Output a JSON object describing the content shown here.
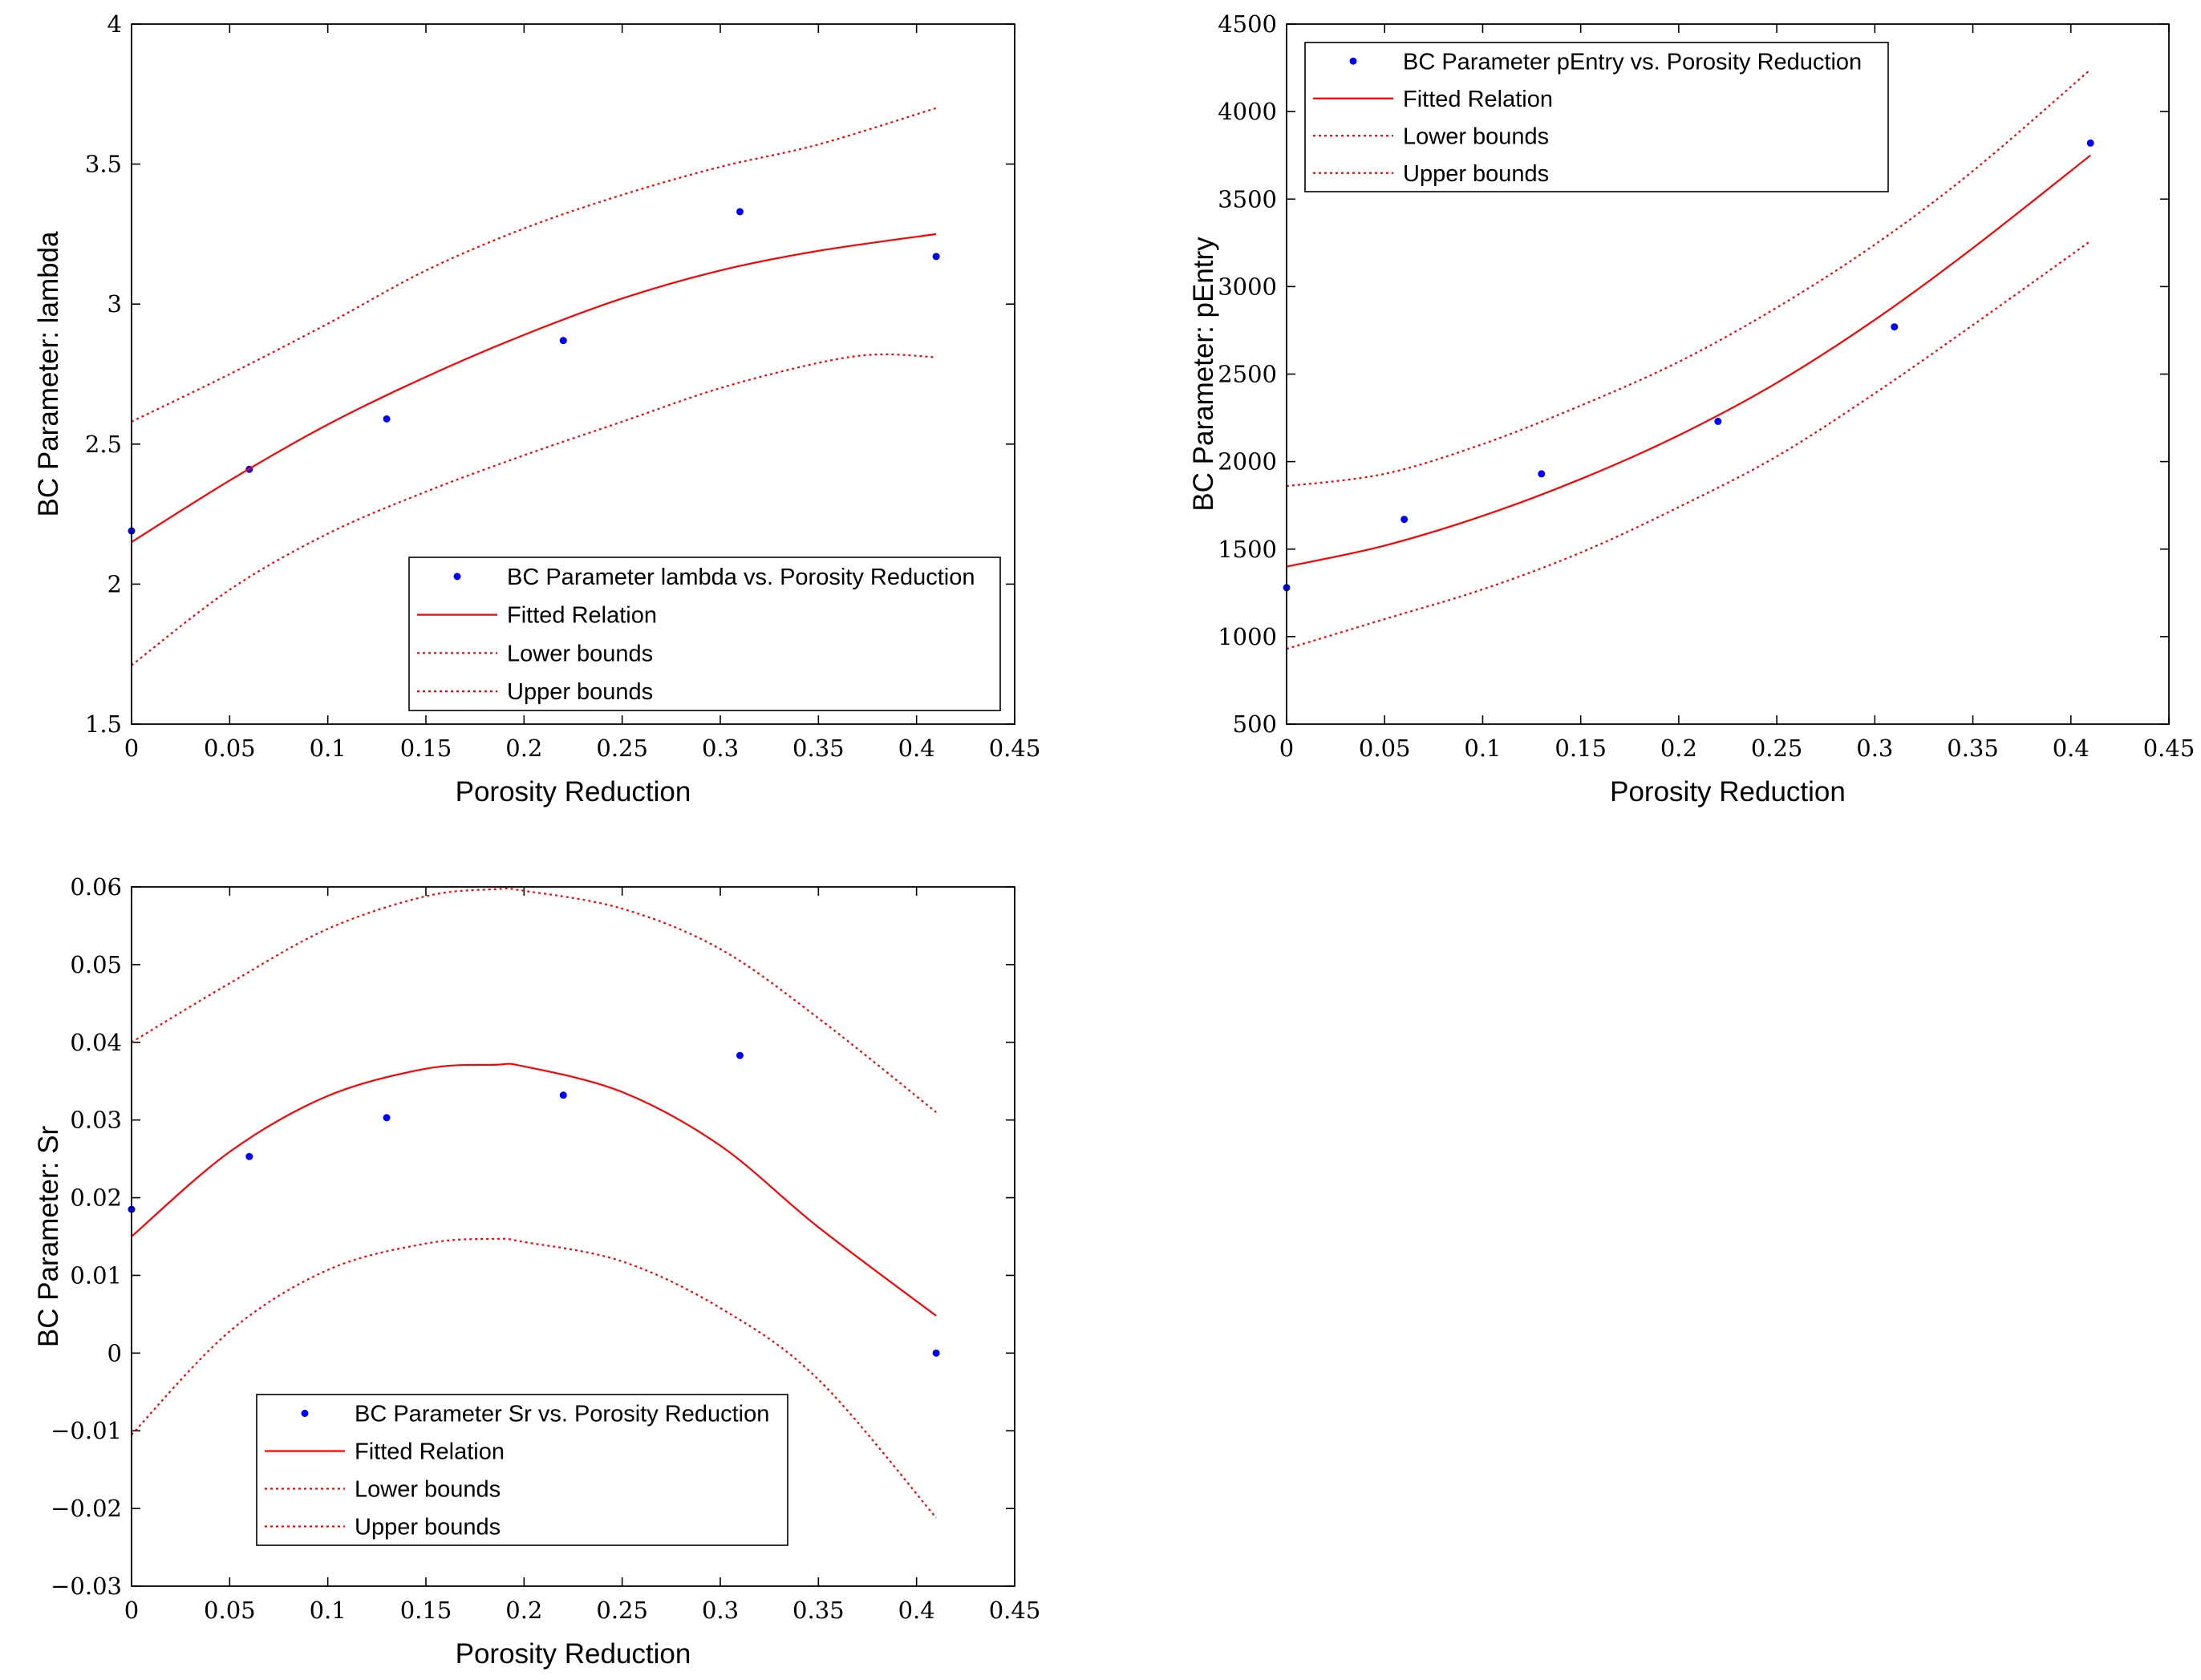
{
  "chart_data": [
    {
      "type": "scatter",
      "title": "",
      "xlabel": "Porosity Reduction",
      "ylabel": "BC Parameter: lambda",
      "xlim": [
        0,
        0.45
      ],
      "ylim": [
        1.5,
        4
      ],
      "xticks": [
        0,
        0.05,
        0.1,
        0.15,
        0.2,
        0.25,
        0.3,
        0.35,
        0.4,
        0.45
      ],
      "xtick_labels": [
        "0",
        "0.05",
        "0.1",
        "0.15",
        "0.2",
        "0.25",
        "0.3",
        "0.35",
        "0.4",
        "0.45"
      ],
      "yticks": [
        1.5,
        2,
        2.5,
        3,
        3.5,
        4
      ],
      "ytick_labels": [
        "1.5",
        "2",
        "2.5",
        "3",
        "3.5",
        "4"
      ],
      "legend_position": "bottom-right",
      "colors": {
        "points": "#0000ff",
        "fit": "#ff0000",
        "bounds": "#ff0000"
      },
      "series": [
        {
          "name": "BC Parameter lambda vs. Porosity Reduction",
          "style": "points",
          "x": [
            0,
            0.06,
            0.13,
            0.22,
            0.31,
            0.41
          ],
          "y": [
            2.19,
            2.41,
            2.59,
            2.87,
            3.33,
            3.17
          ]
        },
        {
          "name": "Fitted Relation",
          "style": "solid",
          "x": [
            0,
            0.05,
            0.1,
            0.15,
            0.2,
            0.25,
            0.3,
            0.35,
            0.41
          ],
          "y": [
            2.15,
            2.37,
            2.57,
            2.74,
            2.89,
            3.02,
            3.12,
            3.19,
            3.25
          ]
        },
        {
          "name": "Lower bounds",
          "style": "dotted",
          "x": [
            0,
            0.05,
            0.1,
            0.15,
            0.2,
            0.25,
            0.3,
            0.35,
            0.38,
            0.41
          ],
          "y": [
            1.71,
            1.98,
            2.18,
            2.33,
            2.46,
            2.58,
            2.7,
            2.79,
            2.82,
            2.81
          ]
        },
        {
          "name": "Upper bounds",
          "style": "dotted",
          "x": [
            0,
            0.05,
            0.1,
            0.15,
            0.2,
            0.25,
            0.3,
            0.35,
            0.41
          ],
          "y": [
            2.58,
            2.75,
            2.93,
            3.12,
            3.27,
            3.39,
            3.49,
            3.57,
            3.7
          ]
        }
      ]
    },
    {
      "type": "scatter",
      "title": "",
      "xlabel": "Porosity Reduction",
      "ylabel": "BC Parameter: pEntry",
      "xlim": [
        0,
        0.45
      ],
      "ylim": [
        500,
        4500
      ],
      "xticks": [
        0,
        0.05,
        0.1,
        0.15,
        0.2,
        0.25,
        0.3,
        0.35,
        0.4,
        0.45
      ],
      "xtick_labels": [
        "0",
        "0.05",
        "0.1",
        "0.15",
        "0.2",
        "0.25",
        "0.3",
        "0.35",
        "0.4",
        "0.45"
      ],
      "yticks": [
        500,
        1000,
        1500,
        2000,
        2500,
        3000,
        3500,
        4000,
        4500
      ],
      "ytick_labels": [
        "500",
        "1000",
        "1500",
        "2000",
        "2500",
        "3000",
        "3500",
        "4000",
        "4500"
      ],
      "legend_position": "top-left",
      "colors": {
        "points": "#0000ff",
        "fit": "#ff0000",
        "bounds": "#ff0000"
      },
      "series": [
        {
          "name": "BC Parameter pEntry vs. Porosity Reduction",
          "style": "points",
          "x": [
            0,
            0.06,
            0.13,
            0.22,
            0.31,
            0.41
          ],
          "y": [
            1280,
            1670,
            1930,
            2230,
            2770,
            3820
          ]
        },
        {
          "name": "Fitted Relation",
          "style": "solid",
          "x": [
            0,
            0.05,
            0.1,
            0.15,
            0.2,
            0.25,
            0.3,
            0.35,
            0.41
          ],
          "y": [
            1400,
            1520,
            1690,
            1900,
            2150,
            2450,
            2810,
            3220,
            3750
          ]
        },
        {
          "name": "Lower bounds",
          "style": "dotted",
          "x": [
            0,
            0.05,
            0.1,
            0.15,
            0.2,
            0.25,
            0.3,
            0.35,
            0.41
          ],
          "y": [
            930,
            1100,
            1270,
            1480,
            1740,
            2030,
            2390,
            2780,
            3260
          ]
        },
        {
          "name": "Upper bounds",
          "style": "dotted",
          "x": [
            0,
            0.05,
            0.1,
            0.15,
            0.2,
            0.25,
            0.3,
            0.35,
            0.41
          ],
          "y": [
            1860,
            1930,
            2100,
            2320,
            2570,
            2880,
            3240,
            3660,
            4240
          ]
        }
      ]
    },
    {
      "type": "scatter",
      "title": "",
      "xlabel": "Porosity Reduction",
      "ylabel": "BC Parameter: Sr",
      "xlim": [
        0,
        0.45
      ],
      "ylim": [
        -0.03,
        0.06
      ],
      "xticks": [
        0,
        0.05,
        0.1,
        0.15,
        0.2,
        0.25,
        0.3,
        0.35,
        0.4,
        0.45
      ],
      "xtick_labels": [
        "0",
        "0.05",
        "0.1",
        "0.15",
        "0.2",
        "0.25",
        "0.3",
        "0.35",
        "0.4",
        "0.45"
      ],
      "yticks": [
        -0.03,
        -0.02,
        -0.01,
        0,
        0.01,
        0.02,
        0.03,
        0.04,
        0.05,
        0.06
      ],
      "ytick_labels": [
        "−0.03",
        "−0.02",
        "−0.01",
        "0",
        "0.01",
        "0.02",
        "0.03",
        "0.04",
        "0.05",
        "0.06"
      ],
      "legend_position": "bottom-left",
      "colors": {
        "points": "#0000ff",
        "fit": "#ff0000",
        "bounds": "#ff0000"
      },
      "series": [
        {
          "name": "BC Parameter Sr vs. Porosity Reduction",
          "style": "points",
          "x": [
            0,
            0.06,
            0.13,
            0.22,
            0.31,
            0.41
          ],
          "y": [
            0.0185,
            0.0253,
            0.0303,
            0.0332,
            0.0383,
            0.0
          ]
        },
        {
          "name": "Fitted Relation",
          "style": "solid",
          "x": [
            0,
            0.05,
            0.1,
            0.15,
            0.185,
            0.2,
            0.25,
            0.3,
            0.35,
            0.41
          ],
          "y": [
            0.015,
            0.0259,
            0.0331,
            0.0366,
            0.0371,
            0.0369,
            0.0336,
            0.0267,
            0.0162,
            0.0048
          ]
        },
        {
          "name": "Lower bounds",
          "style": "dotted",
          "x": [
            0,
            0.05,
            0.1,
            0.15,
            0.185,
            0.2,
            0.25,
            0.3,
            0.35,
            0.41
          ],
          "y": [
            -0.0105,
            0.0028,
            0.0107,
            0.0141,
            0.0147,
            0.0143,
            0.0118,
            0.0058,
            -0.0034,
            -0.0212
          ]
        },
        {
          "name": "Upper bounds",
          "style": "dotted",
          "x": [
            0,
            0.05,
            0.1,
            0.15,
            0.185,
            0.2,
            0.25,
            0.3,
            0.35,
            0.41
          ],
          "y": [
            0.04,
            0.0476,
            0.0546,
            0.0588,
            0.0597,
            0.0595,
            0.0572,
            0.052,
            0.0431,
            0.031
          ]
        }
      ]
    }
  ]
}
